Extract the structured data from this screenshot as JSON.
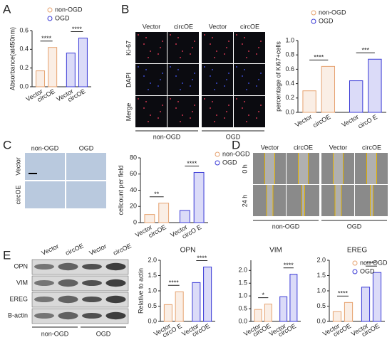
{
  "panels": {
    "letters": [
      "A",
      "B",
      "C",
      "D",
      "E"
    ],
    "B_images": {
      "columns": [
        "Vector",
        "circOE",
        "Vector",
        "circOE"
      ],
      "rows": [
        "Ki-67",
        "DAPI",
        "Merge"
      ],
      "groups": [
        "non-OGD",
        "OGD"
      ]
    },
    "C_images": {
      "columns": [
        "non-OGD",
        "OGD"
      ],
      "rows": [
        "Vector",
        "circOE"
      ]
    },
    "D_images": {
      "columns": [
        "Vector",
        "circOE",
        "Vector",
        "circOE"
      ],
      "rows": [
        "0 h",
        "24 h"
      ],
      "groups": [
        "non-OGD",
        "OGD"
      ]
    },
    "E_blot": {
      "columns": [
        "Vector",
        "circOE",
        "Vector",
        "circOE"
      ],
      "rows": [
        "OPN",
        "VIM",
        "EREG",
        "B-actin"
      ],
      "groups": [
        "non-OGD",
        "OGD"
      ]
    }
  },
  "chart_data": [
    {
      "type": "bar",
      "y_label": "Absorbance(at450nm)",
      "categories": [
        "Vector",
        "circOE",
        "Vector",
        "circOE"
      ],
      "series": [
        {
          "name": "non-OGD",
          "color": "#e6a26f",
          "values": [
            0.17,
            0.42,
            null,
            null
          ]
        },
        {
          "name": "OGD",
          "color": "#3a3ad6",
          "values": [
            null,
            null,
            0.36,
            0.52
          ]
        }
      ],
      "ylim": [
        0,
        0.6
      ],
      "yticks": [
        {
          "value": 0,
          "label": "0.0"
        },
        {
          "value": 0.2,
          "label": "0.2"
        },
        {
          "value": 0.4,
          "label": "0.4"
        },
        {
          "value": 0.6,
          "label": "0.6"
        }
      ],
      "annotations": [
        "****",
        "****"
      ],
      "legend": true
    },
    {
      "type": "bar",
      "y_label": "percentage of Ki67+cells",
      "categories": [
        "Vector",
        "circOE",
        "Vector",
        "circO E"
      ],
      "series": [
        {
          "name": "non-OGD",
          "color": "#e6a26f",
          "values": [
            0.3,
            0.64,
            null,
            null
          ]
        },
        {
          "name": "OGD",
          "color": "#3a3ad6",
          "values": [
            null,
            null,
            0.44,
            0.74
          ]
        }
      ],
      "ylim": [
        0,
        1.0
      ],
      "yticks": [
        {
          "value": 0,
          "label": "0.0"
        },
        {
          "value": 0.2,
          "label": "0.2"
        },
        {
          "value": 0.4,
          "label": "0.4"
        },
        {
          "value": 0.6,
          "label": "0.6"
        },
        {
          "value": 0.8,
          "label": "0.8"
        },
        {
          "value": 1.0,
          "label": "1.0"
        }
      ],
      "annotations": [
        "****",
        "***"
      ],
      "legend": true
    },
    {
      "type": "bar",
      "y_label": "cellcount per field",
      "categories": [
        "Vector",
        "circOE",
        "Vector",
        "circO E"
      ],
      "series": [
        {
          "name": "non-OGD",
          "color": "#e6a26f",
          "values": [
            10,
            24,
            null,
            null
          ]
        },
        {
          "name": "OGD",
          "color": "#3a3ad6",
          "values": [
            null,
            null,
            15,
            62
          ]
        }
      ],
      "ylim": [
        0,
        80
      ],
      "yticks": [
        0,
        20,
        40,
        60,
        80
      ],
      "annotations": [
        "**",
        "****"
      ],
      "legend": true
    },
    {
      "type": "bar",
      "title": "OPN",
      "y_label": "Relative  to actin",
      "categories": [
        "Vector",
        "circO E",
        "Vector",
        "circOE"
      ],
      "series": [
        {
          "name": "non-OGD",
          "color": "#e6a26f",
          "values": [
            0.55,
            0.97,
            null,
            null
          ]
        },
        {
          "name": "OGD",
          "color": "#3a3ad6",
          "values": [
            null,
            null,
            1.27,
            1.78
          ]
        }
      ],
      "ylim": [
        0,
        2.0
      ],
      "yticks": [
        {
          "value": 0,
          "label": "0.0"
        },
        {
          "value": 0.5,
          "label": "0.5"
        },
        {
          "value": 1.0,
          "label": "1.0"
        },
        {
          "value": 1.5,
          "label": "1.5"
        },
        {
          "value": 2.0,
          "label": "2.0"
        }
      ],
      "annotations": [
        "****",
        "****"
      ],
      "legend": false
    },
    {
      "type": "bar",
      "title": "VIM",
      "categories": [
        "Vector",
        "circOE",
        "Vector",
        "circOE"
      ],
      "series": [
        {
          "name": "non-OGD",
          "color": "#e6a26f",
          "values": [
            0.47,
            0.68,
            null,
            null
          ]
        },
        {
          "name": "OGD",
          "color": "#3a3ad6",
          "values": [
            null,
            null,
            0.97,
            1.85
          ]
        }
      ],
      "ylim": [
        0,
        2.4
      ],
      "yticks": [
        {
          "value": 0,
          "label": "0.0"
        },
        {
          "value": 0.5,
          "label": "0.5"
        },
        {
          "value": 1.0,
          "label": "1.0"
        },
        {
          "value": 1.5,
          "label": "1.5"
        },
        {
          "value": 2.0,
          "label": "2.0"
        }
      ],
      "annotations": [
        "*",
        "****"
      ],
      "legend": false
    },
    {
      "type": "bar",
      "title": "EREG",
      "categories": [
        "Vector",
        "circOE",
        "Vector",
        "circOE"
      ],
      "series": [
        {
          "name": "non-OGD",
          "color": "#e6a26f",
          "values": [
            0.32,
            0.62,
            null,
            null
          ]
        },
        {
          "name": "OGD",
          "color": "#3a3ad6",
          "values": [
            null,
            null,
            1.12,
            1.6
          ]
        }
      ],
      "ylim": [
        0,
        2.0
      ],
      "yticks": [
        {
          "value": 0,
          "label": "0.0"
        },
        {
          "value": 0.5,
          "label": "0.5"
        },
        {
          "value": 1.0,
          "label": "1.0"
        },
        {
          "value": 1.5,
          "label": "1.5"
        },
        {
          "value": 2.0,
          "label": "2.0"
        }
      ],
      "annotations": [
        "****",
        "****"
      ],
      "legend": true
    }
  ]
}
